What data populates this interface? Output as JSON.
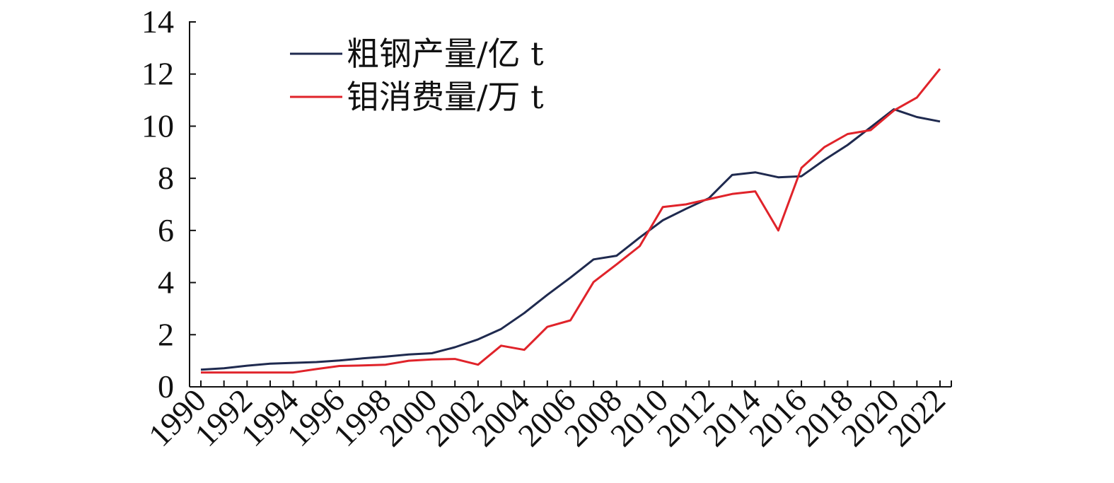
{
  "chart_data": {
    "type": "line",
    "title": "",
    "xlabel": "",
    "ylabel": "",
    "x": [
      1990,
      1991,
      1992,
      1993,
      1994,
      1995,
      1996,
      1997,
      1998,
      1999,
      2000,
      2001,
      2002,
      2003,
      2004,
      2005,
      2006,
      2007,
      2008,
      2009,
      2010,
      2011,
      2012,
      2013,
      2014,
      2015,
      2016,
      2017,
      2018,
      2019,
      2020,
      2021,
      2022
    ],
    "x_tick_labels": [
      "1990",
      "1992",
      "1994",
      "1996",
      "1998",
      "2000",
      "2002",
      "2004",
      "2006",
      "2008",
      "2010",
      "2012",
      "2014",
      "2016",
      "2018",
      "2020",
      "2022"
    ],
    "ylim": [
      0,
      14
    ],
    "y_ticks": [
      0,
      2,
      4,
      6,
      8,
      10,
      12,
      14
    ],
    "grid": false,
    "legend_position": "top-left",
    "series": [
      {
        "name": "粗钢产量/亿 t",
        "color": "#1f2a4f",
        "values": [
          0.66,
          0.71,
          0.81,
          0.89,
          0.92,
          0.95,
          1.01,
          1.09,
          1.16,
          1.24,
          1.29,
          1.52,
          1.82,
          2.22,
          2.83,
          3.53,
          4.19,
          4.89,
          5.03,
          5.73,
          6.39,
          6.83,
          7.24,
          8.13,
          8.23,
          8.04,
          8.08,
          8.71,
          9.28,
          9.96,
          10.65,
          10.35,
          10.18
        ]
      },
      {
        "name": "钼消费量/万 t",
        "color": "#e0232a",
        "values": [
          0.55,
          0.55,
          0.55,
          0.55,
          0.55,
          0.68,
          0.8,
          0.82,
          0.85,
          1.0,
          1.05,
          1.07,
          0.85,
          1.58,
          1.42,
          2.3,
          2.55,
          4.02,
          4.7,
          5.4,
          6.9,
          7.0,
          7.2,
          7.4,
          7.5,
          6.0,
          8.4,
          9.2,
          9.7,
          9.85,
          10.6,
          11.1,
          12.2
        ]
      }
    ]
  }
}
